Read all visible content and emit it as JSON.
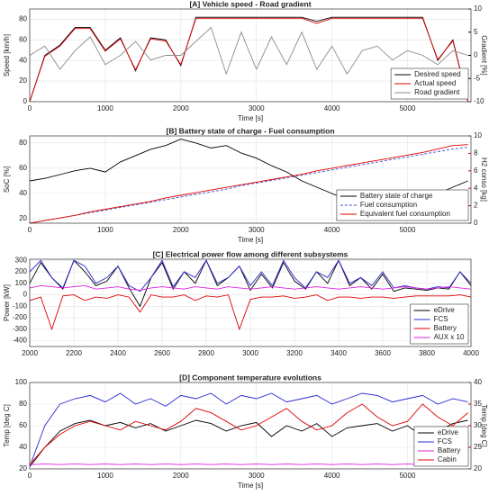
{
  "chart_data": [
    {
      "type": "line",
      "title": "[A] Vehicle speed - Road gradient",
      "x_label": "Time [s]",
      "y_label": "Speed [km/h]",
      "y2_label": "Gradient [%]",
      "y2_color": "#000000",
      "x": [
        0,
        200,
        400,
        600,
        800,
        1000,
        1200,
        1400,
        1600,
        1800,
        2000,
        2200,
        2400,
        2600,
        2800,
        3000,
        3200,
        3400,
        3600,
        3800,
        4000,
        4200,
        4400,
        4600,
        4800,
        5000,
        5200,
        5400,
        5600,
        5800
      ],
      "xlim": [
        0,
        5840
      ],
      "xticks": [
        0,
        1000,
        2000,
        3000,
        4000,
        5000
      ],
      "ylim": [
        0,
        90
      ],
      "yticks": [
        0,
        20,
        40,
        60,
        80
      ],
      "y2lim": [
        -10,
        10
      ],
      "y2ticks": [
        -10,
        -5,
        0,
        5,
        10
      ],
      "grid": true,
      "legend": "lower right",
      "series": [
        {
          "name": "Desired speed",
          "color": "#000000",
          "values": [
            0,
            45,
            55,
            72,
            72,
            50,
            62,
            30,
            62,
            60,
            35,
            82,
            82,
            82,
            82,
            82,
            82,
            82,
            82,
            78,
            82,
            82,
            82,
            82,
            82,
            82,
            82,
            40,
            60,
            0
          ]
        },
        {
          "name": "Actual speed",
          "color": "#e00000",
          "values": [
            0,
            44,
            54,
            71,
            71,
            49,
            61,
            31,
            61,
            59,
            36,
            81,
            81,
            81,
            81,
            81,
            81,
            81,
            81,
            76,
            81,
            81,
            81,
            81,
            81,
            81,
            81,
            41,
            59,
            0
          ]
        },
        {
          "name": "Road gradient",
          "color": "#8c8c8c",
          "axis": "y2",
          "values": [
            0,
            2,
            -3,
            1,
            4,
            -2,
            0,
            3,
            -1,
            0,
            0,
            3,
            6,
            -4,
            5,
            -3,
            4,
            -2,
            5,
            -3,
            2,
            -4,
            1,
            2,
            -1,
            1,
            0,
            -2,
            1,
            0
          ]
        }
      ]
    },
    {
      "type": "line",
      "title": "[B] Battery state of charge - Fuel consumption",
      "x_label": "Time [s]",
      "y_label": "SoC [%]",
      "y2_label": "H2 conso [kg]",
      "y2_color": "#e00000",
      "x": [
        0,
        200,
        400,
        600,
        800,
        1000,
        1200,
        1400,
        1600,
        1800,
        2000,
        2200,
        2400,
        2600,
        2800,
        3000,
        3200,
        3400,
        3600,
        3800,
        4000,
        4200,
        4400,
        4600,
        4800,
        5000,
        5200,
        5400,
        5600,
        5800
      ],
      "xlim": [
        0,
        5840
      ],
      "xticks": [
        0,
        1000,
        2000,
        3000,
        4000,
        5000
      ],
      "ylim": [
        16.5,
        85.6
      ],
      "yticks": [
        20,
        40,
        60,
        80
      ],
      "y2lim": [
        0,
        10
      ],
      "y2ticks": [
        0,
        2,
        4,
        6,
        8,
        10
      ],
      "grid": true,
      "legend": "lower right",
      "series": [
        {
          "name": "Battery state of charge",
          "color": "#000000",
          "values": [
            50,
            52,
            55,
            58,
            60,
            57,
            65,
            70,
            75,
            78,
            83,
            80,
            76,
            78,
            72,
            68,
            62,
            57,
            50,
            45,
            40,
            35,
            33,
            30,
            28,
            27,
            33,
            40,
            45,
            50
          ]
        },
        {
          "name": "Fuel consumption",
          "color": "#3c50c8",
          "axis": "y2",
          "style": "dashed",
          "values": [
            0,
            0.3,
            0.6,
            0.9,
            1.2,
            1.5,
            1.8,
            2.1,
            2.4,
            2.7,
            3.0,
            3.3,
            3.6,
            3.9,
            4.3,
            4.6,
            4.9,
            5.2,
            5.5,
            5.8,
            6.1,
            6.4,
            6.7,
            7.0,
            7.3,
            7.6,
            7.9,
            8.2,
            8.5,
            8.7
          ]
        },
        {
          "name": "Equivalent fuel consumption",
          "color": "#e00000",
          "axis": "y2",
          "values": [
            0,
            0.3,
            0.6,
            0.9,
            1.3,
            1.6,
            1.9,
            2.2,
            2.5,
            2.9,
            3.2,
            3.5,
            3.8,
            4.1,
            4.4,
            4.7,
            5.0,
            5.3,
            5.6,
            6.0,
            6.3,
            6.6,
            6.9,
            7.2,
            7.5,
            7.8,
            8.1,
            8.5,
            8.9,
            9.0
          ]
        }
      ]
    },
    {
      "type": "line",
      "title": "[C] Electrical power flow among different subsystems",
      "y_label": "Power [kW]",
      "x": [
        2000,
        2050,
        2100,
        2150,
        2200,
        2250,
        2300,
        2350,
        2400,
        2450,
        2500,
        2550,
        2600,
        2650,
        2700,
        2750,
        2800,
        2850,
        2900,
        2950,
        3000,
        3050,
        3100,
        3150,
        3200,
        3250,
        3300,
        3350,
        3400,
        3450,
        3500,
        3550,
        3600,
        3650,
        3700,
        3750,
        3800,
        3850,
        3900,
        3950,
        4000
      ],
      "xlim": [
        2000,
        4000
      ],
      "xticks": [
        2000,
        2200,
        2400,
        2600,
        2800,
        3000,
        3200,
        3400,
        3600,
        3800,
        4000
      ],
      "ylim": [
        -450,
        310
      ],
      "yticks": [
        -400,
        -300,
        -200,
        -100,
        0,
        100,
        200,
        300
      ],
      "grid": true,
      "legend": "lower right",
      "series": [
        {
          "name": "eDrive",
          "color": "#000000",
          "values": [
            100,
            280,
            150,
            50,
            300,
            200,
            80,
            120,
            250,
            60,
            -100,
            150,
            280,
            50,
            200,
            100,
            300,
            80,
            150,
            250,
            40,
            180,
            60,
            280,
            120,
            50,
            200,
            100,
            300,
            80,
            150,
            50,
            180,
            30,
            60,
            50,
            40,
            60,
            50,
            200,
            80
          ]
        },
        {
          "name": "FCS",
          "color": "#2828d2",
          "values": [
            200,
            300,
            150,
            60,
            300,
            250,
            100,
            150,
            250,
            80,
            30,
            150,
            300,
            70,
            200,
            150,
            300,
            100,
            150,
            250,
            80,
            200,
            80,
            300,
            150,
            60,
            200,
            150,
            300,
            100,
            150,
            80,
            200,
            60,
            80,
            60,
            50,
            70,
            60,
            200,
            100
          ]
        },
        {
          "name": "Battery",
          "color": "#e00000",
          "values": [
            -50,
            -20,
            -300,
            -10,
            0,
            -50,
            -20,
            -30,
            0,
            -20,
            -150,
            0,
            -20,
            -20,
            0,
            -50,
            -10,
            -20,
            0,
            -300,
            -40,
            -20,
            -20,
            -10,
            -30,
            -20,
            0,
            -50,
            -20,
            -20,
            -30,
            -20,
            -20,
            -30,
            -20,
            -10,
            -10,
            -10,
            -10,
            0,
            -20
          ]
        },
        {
          "name": "AUX x 10",
          "color": "#e020e0",
          "values": [
            60,
            80,
            70,
            60,
            70,
            80,
            50,
            60,
            70,
            50,
            40,
            60,
            70,
            60,
            50,
            70,
            60,
            50,
            70,
            60,
            50,
            60,
            70,
            60,
            50,
            60,
            70,
            60,
            50,
            60,
            70,
            60,
            50,
            60,
            70,
            60,
            50,
            60,
            70,
            60,
            50
          ]
        }
      ]
    },
    {
      "type": "line",
      "title": "[D] Component temperature evolutions",
      "x_label": "Time [s]",
      "y_label": "Temp [deg C]",
      "y2_label": "Temp [deg C]",
      "y2_color": "#e00000",
      "x": [
        0,
        200,
        400,
        600,
        800,
        1000,
        1200,
        1400,
        1600,
        1800,
        2000,
        2200,
        2400,
        2600,
        2800,
        3000,
        3200,
        3400,
        3600,
        3800,
        4000,
        4200,
        4400,
        4600,
        4800,
        5000,
        5200,
        5400,
        5600,
        5800
      ],
      "xlim": [
        0,
        5840
      ],
      "xticks": [
        0,
        1000,
        2000,
        3000,
        4000,
        5000
      ],
      "ylim": [
        20,
        100
      ],
      "yticks": [
        20,
        40,
        60,
        80,
        100
      ],
      "y2lim": [
        20,
        40
      ],
      "y2ticks": [
        20,
        25,
        30,
        35,
        40
      ],
      "grid": true,
      "legend": "lower right",
      "series": [
        {
          "name": "eDrive",
          "color": "#000000",
          "values": [
            22,
            40,
            55,
            62,
            65,
            60,
            63,
            58,
            62,
            55,
            60,
            65,
            62,
            55,
            60,
            63,
            50,
            60,
            55,
            62,
            50,
            58,
            60,
            62,
            55,
            60,
            50,
            55,
            62,
            65
          ]
        },
        {
          "name": "FCS",
          "color": "#2828d2",
          "values": [
            22,
            60,
            80,
            85,
            88,
            82,
            90,
            80,
            85,
            78,
            88,
            85,
            90,
            80,
            88,
            85,
            90,
            82,
            85,
            88,
            80,
            85,
            90,
            88,
            82,
            85,
            88,
            80,
            85,
            82
          ]
        },
        {
          "name": "Battery",
          "color": "#e020e0",
          "values": [
            24,
            24.5,
            24,
            24.5,
            24,
            24.5,
            24,
            24.5,
            24,
            24.5,
            24,
            24.5,
            24,
            24.5,
            24,
            24.5,
            24,
            24.5,
            24,
            24.5,
            24,
            24.5,
            24,
            24.5,
            24,
            24.5,
            24,
            24.5,
            24,
            24.5
          ]
        },
        {
          "name": "Cabin",
          "color": "#e00000",
          "axis": "y2",
          "values": [
            21,
            25,
            28,
            30,
            31,
            30,
            29,
            31,
            30,
            29,
            31,
            34,
            33,
            31,
            29,
            30,
            32,
            34,
            31,
            29,
            30,
            33,
            35,
            32,
            30,
            31,
            35,
            32,
            30,
            33
          ]
        }
      ]
    }
  ]
}
